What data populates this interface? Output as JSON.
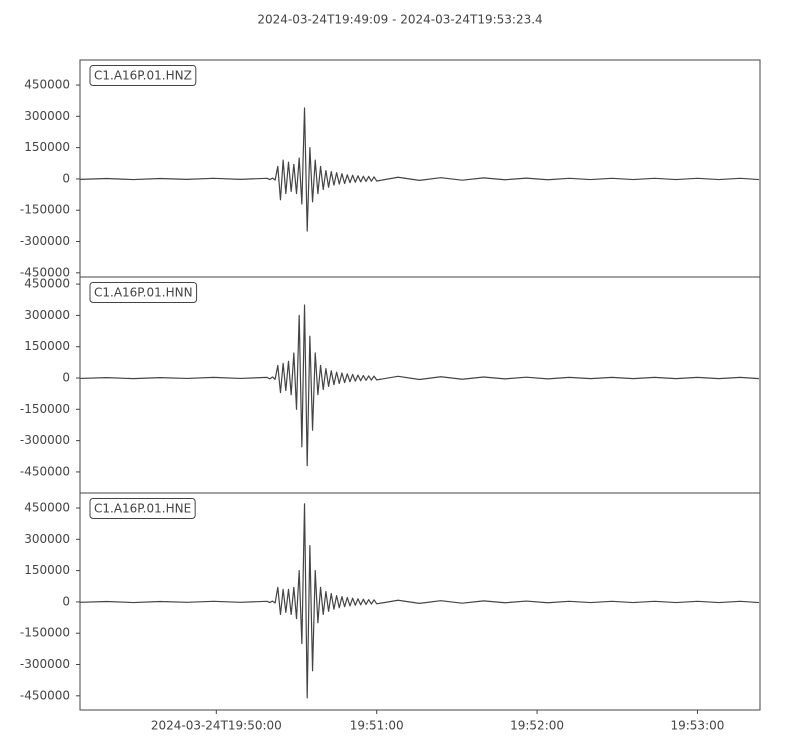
{
  "chart_data": [
    {
      "type": "line",
      "title": "2024-03-24T19:49:09  -  2024-03-24T19:53:23.4",
      "x": [
        "2024-03-24T19:49:09",
        "2024-03-24T19:49:19",
        "2024-03-24T19:49:29",
        "2024-03-24T19:49:39",
        "2024-03-24T19:49:49",
        "2024-03-24T19:49:59",
        "2024-03-24T19:50:09",
        "2024-03-24T19:50:19",
        "2024-03-24T19:50:20",
        "2024-03-24T19:50:21",
        "2024-03-24T19:50:22",
        "2024-03-24T19:50:23",
        "2024-03-24T19:50:24",
        "2024-03-24T19:50:25",
        "2024-03-24T19:50:26",
        "2024-03-24T19:50:27",
        "2024-03-24T19:50:28",
        "2024-03-24T19:50:29",
        "2024-03-24T19:50:30",
        "2024-03-24T19:50:31",
        "2024-03-24T19:50:32",
        "2024-03-24T19:50:33",
        "2024-03-24T19:50:34",
        "2024-03-24T19:50:35",
        "2024-03-24T19:50:36",
        "2024-03-24T19:50:37",
        "2024-03-24T19:50:38",
        "2024-03-24T19:50:39",
        "2024-03-24T19:50:40",
        "2024-03-24T19:50:41",
        "2024-03-24T19:50:42",
        "2024-03-24T19:50:43",
        "2024-03-24T19:50:44",
        "2024-03-24T19:50:45",
        "2024-03-24T19:50:46",
        "2024-03-24T19:50:47",
        "2024-03-24T19:50:48",
        "2024-03-24T19:50:49",
        "2024-03-24T19:50:50",
        "2024-03-24T19:50:51",
        "2024-03-24T19:50:52",
        "2024-03-24T19:50:53",
        "2024-03-24T19:50:54",
        "2024-03-24T19:50:55",
        "2024-03-24T19:50:56",
        "2024-03-24T19:50:57",
        "2024-03-24T19:50:58",
        "2024-03-24T19:50:59",
        "2024-03-24T19:51:00",
        "2024-03-24T19:51:08",
        "2024-03-24T19:51:16",
        "2024-03-24T19:51:24",
        "2024-03-24T19:51:32",
        "2024-03-24T19:51:40",
        "2024-03-24T19:51:48",
        "2024-03-24T19:51:56",
        "2024-03-24T19:52:04",
        "2024-03-24T19:52:12",
        "2024-03-24T19:52:20",
        "2024-03-24T19:52:28",
        "2024-03-24T19:52:36",
        "2024-03-24T19:52:44",
        "2024-03-24T19:52:52",
        "2024-03-24T19:53:00",
        "2024-03-24T19:53:08",
        "2024-03-24T19:53:16",
        "2024-03-24T19:53:23"
      ],
      "series": [
        {
          "name": "C1.A16P.01.HNZ",
          "color": "#444444",
          "values": [
            -2000,
            2000,
            -3000,
            2000,
            -2000,
            3000,
            -2000,
            3000,
            -3000,
            4000,
            -5000,
            60000,
            -100000,
            90000,
            -70000,
            80000,
            -60000,
            70000,
            -70000,
            100000,
            -120000,
            340000,
            -250000,
            150000,
            -110000,
            90000,
            -70000,
            60000,
            -50000,
            40000,
            -40000,
            35000,
            -30000,
            30000,
            -25000,
            25000,
            -22000,
            20000,
            -18000,
            18000,
            -16000,
            15000,
            -14000,
            13000,
            -12000,
            12000,
            -11000,
            10000,
            -10000,
            8000,
            -7000,
            6000,
            -6000,
            5000,
            -4000,
            4000,
            -4000,
            3000,
            -3000,
            3000,
            -3000,
            3000,
            -3000,
            3000,
            -3000,
            3000,
            -3000
          ]
        }
      ],
      "xlim": [
        "2024-03-24T19:49:09",
        "2024-03-24T19:53:23.4"
      ],
      "ylim": [
        -470000,
        570000
      ],
      "yticks": [
        -450000,
        -300000,
        -150000,
        0,
        150000,
        300000,
        450000
      ]
    },
    {
      "type": "line",
      "x": [
        "2024-03-24T19:49:09",
        "2024-03-24T19:49:19",
        "2024-03-24T19:49:29",
        "2024-03-24T19:49:39",
        "2024-03-24T19:49:49",
        "2024-03-24T19:49:59",
        "2024-03-24T19:50:09",
        "2024-03-24T19:50:19",
        "2024-03-24T19:50:20",
        "2024-03-24T19:50:21",
        "2024-03-24T19:50:22",
        "2024-03-24T19:50:23",
        "2024-03-24T19:50:24",
        "2024-03-24T19:50:25",
        "2024-03-24T19:50:26",
        "2024-03-24T19:50:27",
        "2024-03-24T19:50:28",
        "2024-03-24T19:50:29",
        "2024-03-24T19:50:30",
        "2024-03-24T19:50:31",
        "2024-03-24T19:50:32",
        "2024-03-24T19:50:33",
        "2024-03-24T19:50:34",
        "2024-03-24T19:50:35",
        "2024-03-24T19:50:36",
        "2024-03-24T19:50:37",
        "2024-03-24T19:50:38",
        "2024-03-24T19:50:39",
        "2024-03-24T19:50:40",
        "2024-03-24T19:50:41",
        "2024-03-24T19:50:42",
        "2024-03-24T19:50:43",
        "2024-03-24T19:50:44",
        "2024-03-24T19:50:45",
        "2024-03-24T19:50:46",
        "2024-03-24T19:50:47",
        "2024-03-24T19:50:48",
        "2024-03-24T19:50:49",
        "2024-03-24T19:50:50",
        "2024-03-24T19:50:51",
        "2024-03-24T19:50:52",
        "2024-03-24T19:50:53",
        "2024-03-24T19:50:54",
        "2024-03-24T19:50:55",
        "2024-03-24T19:50:56",
        "2024-03-24T19:50:57",
        "2024-03-24T19:50:58",
        "2024-03-24T19:50:59",
        "2024-03-24T19:51:00",
        "2024-03-24T19:51:08",
        "2024-03-24T19:51:16",
        "2024-03-24T19:51:24",
        "2024-03-24T19:51:32",
        "2024-03-24T19:51:40",
        "2024-03-24T19:51:48",
        "2024-03-24T19:51:56",
        "2024-03-24T19:52:04",
        "2024-03-24T19:52:12",
        "2024-03-24T19:52:20",
        "2024-03-24T19:52:28",
        "2024-03-24T19:52:36",
        "2024-03-24T19:52:44",
        "2024-03-24T19:52:52",
        "2024-03-24T19:53:00",
        "2024-03-24T19:53:08",
        "2024-03-24T19:53:16",
        "2024-03-24T19:53:23"
      ],
      "series": [
        {
          "name": "C1.A16P.01.HNN",
          "color": "#444444",
          "values": [
            -2000,
            2000,
            -3000,
            2000,
            -2000,
            3000,
            -2000,
            3000,
            -4000,
            5000,
            -6000,
            60000,
            -70000,
            70000,
            -60000,
            80000,
            -80000,
            120000,
            -150000,
            300000,
            -330000,
            350000,
            -420000,
            200000,
            -250000,
            120000,
            -80000,
            60000,
            -55000,
            45000,
            -40000,
            35000,
            -32000,
            28000,
            -26000,
            24000,
            -22000,
            20000,
            -18000,
            17000,
            -15000,
            14000,
            -13000,
            12000,
            -11000,
            10000,
            -10000,
            9000,
            -9000,
            8000,
            -7000,
            6000,
            -6000,
            5000,
            -4000,
            4000,
            -4000,
            3000,
            -3000,
            3000,
            -3000,
            3000,
            -3000,
            3000,
            -3000,
            3000,
            -3000
          ]
        }
      ],
      "xlim": [
        "2024-03-24T19:49:09",
        "2024-03-24T19:53:23.4"
      ],
      "ylim": [
        -551000,
        484000
      ],
      "yticks": [
        -450000,
        -300000,
        -150000,
        0,
        150000,
        300000,
        450000
      ]
    },
    {
      "type": "line",
      "x": [
        "2024-03-24T19:49:09",
        "2024-03-24T19:49:19",
        "2024-03-24T19:49:29",
        "2024-03-24T19:49:39",
        "2024-03-24T19:49:49",
        "2024-03-24T19:49:59",
        "2024-03-24T19:50:09",
        "2024-03-24T19:50:19",
        "2024-03-24T19:50:20",
        "2024-03-24T19:50:21",
        "2024-03-24T19:50:22",
        "2024-03-24T19:50:23",
        "2024-03-24T19:50:24",
        "2024-03-24T19:50:25",
        "2024-03-24T19:50:26",
        "2024-03-24T19:50:27",
        "2024-03-24T19:50:28",
        "2024-03-24T19:50:29",
        "2024-03-24T19:50:30",
        "2024-03-24T19:50:31",
        "2024-03-24T19:50:32",
        "2024-03-24T19:50:33",
        "2024-03-24T19:50:34",
        "2024-03-24T19:50:35",
        "2024-03-24T19:50:36",
        "2024-03-24T19:50:37",
        "2024-03-24T19:50:38",
        "2024-03-24T19:50:39",
        "2024-03-24T19:50:40",
        "2024-03-24T19:50:41",
        "2024-03-24T19:50:42",
        "2024-03-24T19:50:43",
        "2024-03-24T19:50:44",
        "2024-03-24T19:50:45",
        "2024-03-24T19:50:46",
        "2024-03-24T19:50:47",
        "2024-03-24T19:50:48",
        "2024-03-24T19:50:49",
        "2024-03-24T19:50:50",
        "2024-03-24T19:50:51",
        "2024-03-24T19:50:52",
        "2024-03-24T19:50:53",
        "2024-03-24T19:50:54",
        "2024-03-24T19:50:55",
        "2024-03-24T19:50:56",
        "2024-03-24T19:50:57",
        "2024-03-24T19:50:58",
        "2024-03-24T19:50:59",
        "2024-03-24T19:51:00",
        "2024-03-24T19:51:08",
        "2024-03-24T19:51:16",
        "2024-03-24T19:51:24",
        "2024-03-24T19:51:32",
        "2024-03-24T19:51:40",
        "2024-03-24T19:51:48",
        "2024-03-24T19:51:56",
        "2024-03-24T19:52:04",
        "2024-03-24T19:52:12",
        "2024-03-24T19:52:20",
        "2024-03-24T19:52:28",
        "2024-03-24T19:52:36",
        "2024-03-24T19:52:44",
        "2024-03-24T19:52:52",
        "2024-03-24T19:53:00",
        "2024-03-24T19:53:08",
        "2024-03-24T19:53:16",
        "2024-03-24T19:53:23"
      ],
      "series": [
        {
          "name": "C1.A16P.01.HNE",
          "color": "#444444",
          "values": [
            -2000,
            2000,
            -3000,
            2000,
            -2000,
            3000,
            -2000,
            3000,
            -3000,
            4000,
            -5000,
            70000,
            -60000,
            60000,
            -50000,
            60000,
            -60000,
            70000,
            -80000,
            150000,
            -200000,
            470000,
            -460000,
            270000,
            -330000,
            150000,
            -100000,
            70000,
            -60000,
            50000,
            -45000,
            40000,
            -35000,
            30000,
            -28000,
            25000,
            -23000,
            21000,
            -19000,
            18000,
            -16000,
            15000,
            -14000,
            13000,
            -12000,
            11000,
            -10000,
            10000,
            -9000,
            8000,
            -7000,
            6000,
            -6000,
            5000,
            -4000,
            4000,
            -4000,
            3000,
            -3000,
            3000,
            -3000,
            3000,
            -3000,
            3000,
            -3000,
            3000,
            -3000
          ]
        }
      ],
      "xlim": [
        "2024-03-24T19:49:09",
        "2024-03-24T19:53:23.4"
      ],
      "xticks": [
        "2024-03-24T19:50:00",
        {
          "value": "2024-03-24T19:51:00",
          "label": "19:51:00"
        },
        {
          "value": "2024-03-24T19:52:00",
          "label": "19:52:00"
        },
        {
          "value": "2024-03-24T19:53:00",
          "label": "19:53:00"
        }
      ],
      "ylim": [
        -518000,
        522000
      ],
      "yticks": [
        -450000,
        -300000,
        -150000,
        0,
        150000,
        300000,
        450000
      ]
    }
  ]
}
